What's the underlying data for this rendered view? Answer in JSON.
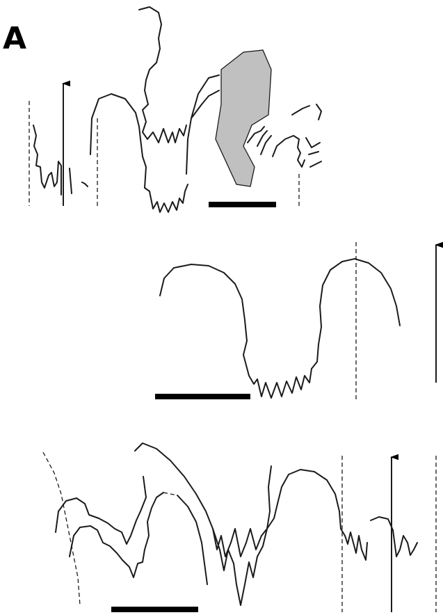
{
  "panel_label": "A"
}
